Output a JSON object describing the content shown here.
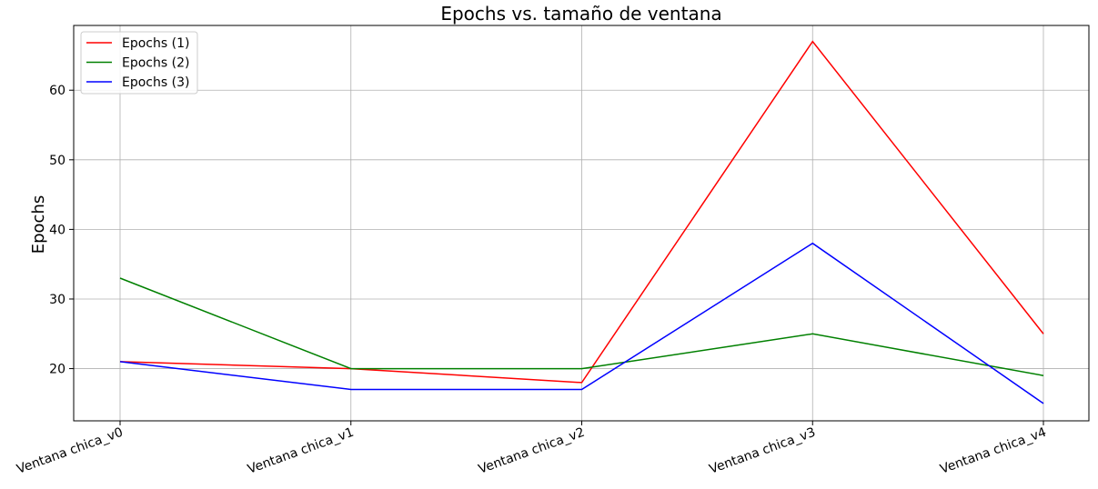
{
  "chart_data": {
    "type": "line",
    "title": "Epochs vs. tamaño de ventana",
    "xlabel": "",
    "ylabel": "Epochs",
    "categories": [
      "Ventana chica_v0",
      "Ventana chica_v1",
      "Ventana chica_v2",
      "Ventana chica_v3",
      "Ventana chica_v4"
    ],
    "ylim": [
      12.5,
      69.3
    ],
    "yticks": [
      20,
      30,
      40,
      50,
      60
    ],
    "grid": true,
    "legend_position": "top-left",
    "series": [
      {
        "name": "Epochs (1)",
        "color": "#ff0000",
        "values": [
          21,
          20,
          18,
          67,
          25
        ]
      },
      {
        "name": "Epochs (2)",
        "color": "#008000",
        "values": [
          33,
          20,
          20,
          25,
          19
        ]
      },
      {
        "name": "Epochs (3)",
        "color": "#0000ff",
        "values": [
          21,
          17,
          17,
          38,
          15
        ]
      }
    ]
  }
}
